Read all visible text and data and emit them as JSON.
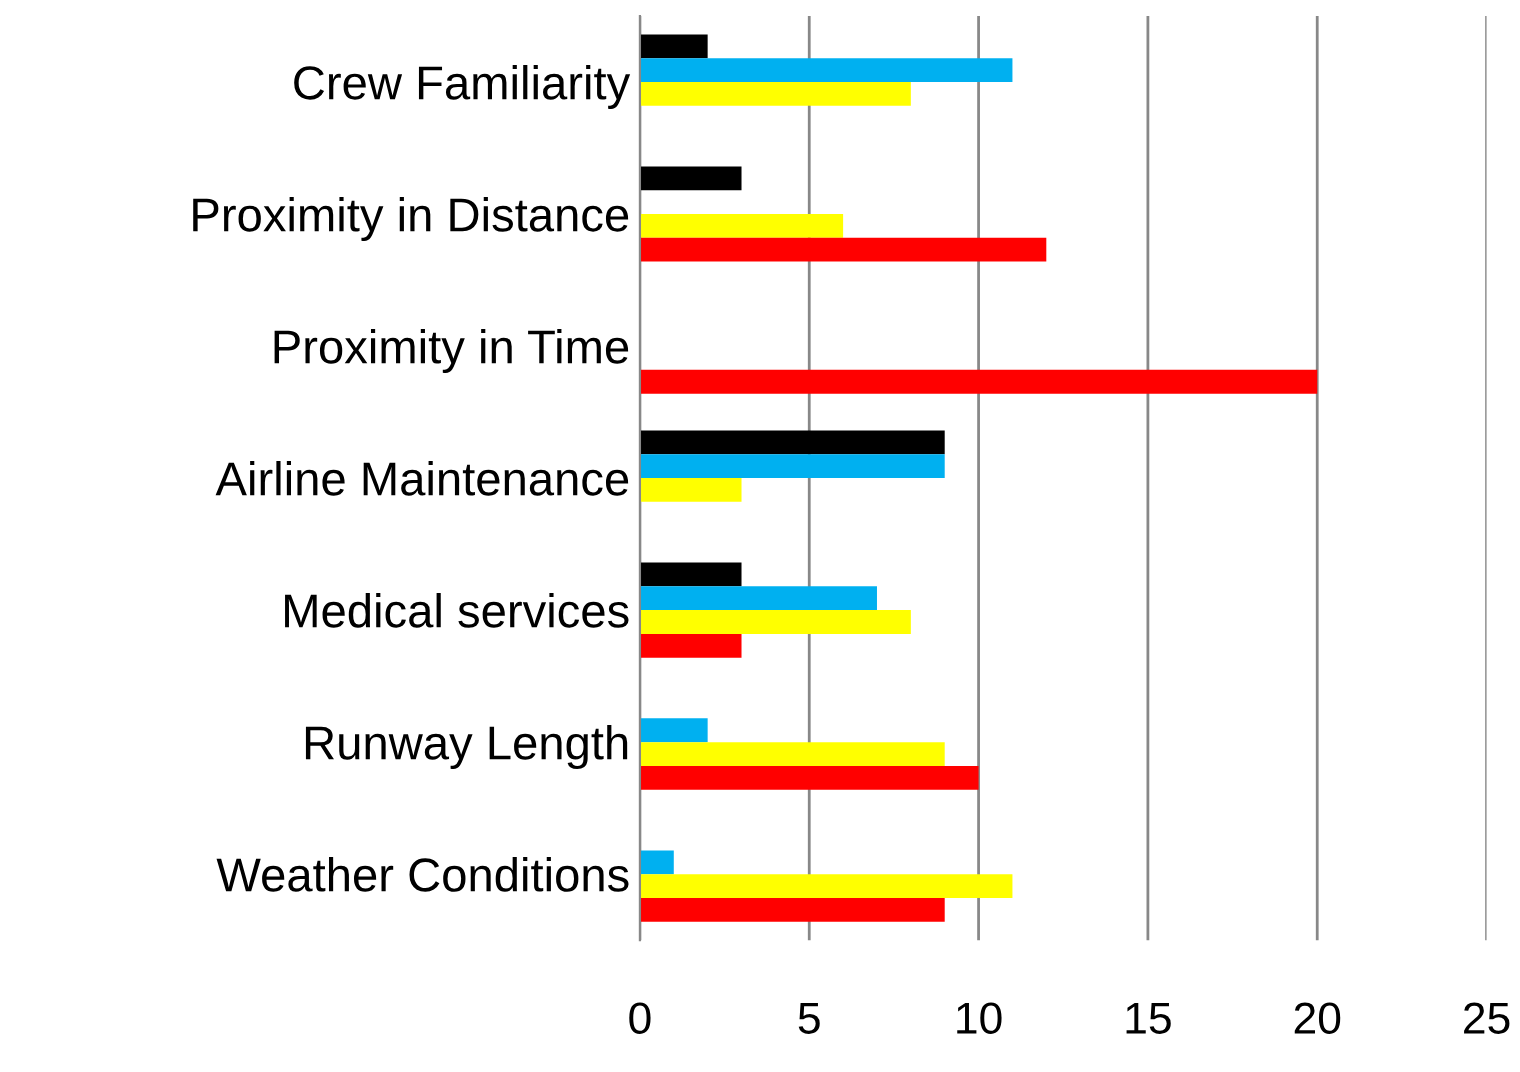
{
  "chart_data": {
    "type": "bar",
    "orientation": "horizontal",
    "categories": [
      "Crew Familiarity",
      "Proximity in Distance",
      "Proximity in Time",
      "Airline Maintenance",
      "Medical services",
      "Runway Length",
      "Weather Conditions"
    ],
    "series": [
      {
        "color": "#000000",
        "values": [
          2,
          3,
          0,
          9,
          3,
          0,
          0
        ]
      },
      {
        "color": "#00b0f0",
        "values": [
          11,
          0,
          0,
          9,
          7,
          2,
          1
        ]
      },
      {
        "color": "#ffff00",
        "values": [
          8,
          6,
          0,
          3,
          8,
          9,
          11
        ]
      },
      {
        "color": "#ff0000",
        "values": [
          0,
          12,
          20,
          0,
          3,
          10,
          9
        ]
      }
    ],
    "xlim": [
      0,
      25
    ],
    "xticks": [
      0,
      5,
      10,
      15,
      20,
      25
    ],
    "grid": "x",
    "legend": false
  }
}
